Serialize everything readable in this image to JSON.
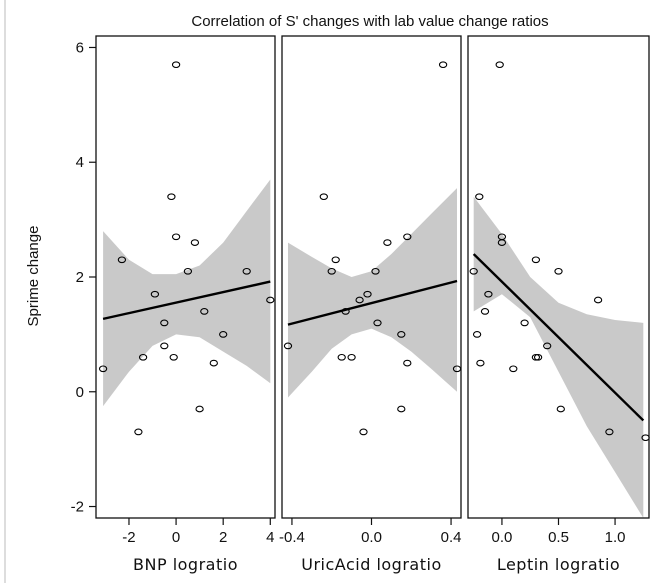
{
  "title": "Correlation of S' changes with lab value change ratios",
  "ylabel": "Sprime change",
  "y_ticks": [
    "6",
    "4",
    "2",
    "0",
    "-2"
  ],
  "chart_data": [
    {
      "type": "scatter",
      "xlabel": "BNP  logratio",
      "ylabel": "Sprime change",
      "xlim": [
        -3.4,
        4.2
      ],
      "ylim": [
        -2.2,
        6.2
      ],
      "x_ticks": [
        -2,
        0,
        2,
        4
      ],
      "x_tick_labels": [
        "-2",
        "0",
        "2",
        "4"
      ],
      "y_ticks": [
        -2,
        0,
        2,
        4,
        6
      ],
      "points": [
        {
          "x": -3.1,
          "y": 0.4
        },
        {
          "x": -2.3,
          "y": 2.3
        },
        {
          "x": -1.6,
          "y": -0.7
        },
        {
          "x": -1.4,
          "y": 0.6
        },
        {
          "x": -0.9,
          "y": 1.7
        },
        {
          "x": -0.5,
          "y": 0.8
        },
        {
          "x": -0.5,
          "y": 1.2
        },
        {
          "x": -0.2,
          "y": 3.4
        },
        {
          "x": 0.0,
          "y": 5.7
        },
        {
          "x": 0.0,
          "y": 2.7
        },
        {
          "x": -0.1,
          "y": 0.6
        },
        {
          "x": 0.5,
          "y": 2.1
        },
        {
          "x": 0.8,
          "y": 2.6
        },
        {
          "x": 1.0,
          "y": -0.3
        },
        {
          "x": 1.2,
          "y": 1.4
        },
        {
          "x": 1.6,
          "y": 0.5
        },
        {
          "x": 2.0,
          "y": 1.0
        },
        {
          "x": 3.0,
          "y": 2.1
        },
        {
          "x": 4.0,
          "y": 1.6
        }
      ],
      "fit_line": [
        {
          "x": -3.1,
          "y": 1.27
        },
        {
          "x": 4.0,
          "y": 1.92
        }
      ],
      "confidence_band": {
        "x": [
          -3.1,
          -2.0,
          -1.0,
          0.0,
          1.0,
          2.0,
          3.0,
          4.0
        ],
        "lower": [
          -0.25,
          0.35,
          0.8,
          1.0,
          0.95,
          0.7,
          0.45,
          0.15
        ],
        "upper": [
          2.8,
          2.3,
          2.05,
          2.05,
          2.2,
          2.6,
          3.15,
          3.7
        ]
      },
      "grid": false
    },
    {
      "type": "scatter",
      "xlabel": "UricAcid  logratio",
      "ylabel": "Sprime change",
      "xlim": [
        -0.45,
        0.45
      ],
      "ylim": [
        -2.2,
        6.2
      ],
      "x_ticks": [
        -0.4,
        0.0,
        0.4
      ],
      "x_tick_labels": [
        "-0.4",
        "0.0",
        "0.4"
      ],
      "y_ticks": [
        -2,
        0,
        2,
        4,
        6
      ],
      "points": [
        {
          "x": -0.42,
          "y": 0.8
        },
        {
          "x": -0.24,
          "y": 3.4
        },
        {
          "x": -0.2,
          "y": 2.1
        },
        {
          "x": -0.18,
          "y": 2.3
        },
        {
          "x": -0.15,
          "y": 0.6
        },
        {
          "x": -0.13,
          "y": 1.4
        },
        {
          "x": -0.1,
          "y": 0.6
        },
        {
          "x": -0.06,
          "y": 1.6
        },
        {
          "x": -0.04,
          "y": -0.7
        },
        {
          "x": -0.02,
          "y": 1.7
        },
        {
          "x": 0.02,
          "y": 2.1
        },
        {
          "x": 0.03,
          "y": 1.2
        },
        {
          "x": 0.08,
          "y": 2.6
        },
        {
          "x": 0.15,
          "y": 1.0
        },
        {
          "x": 0.15,
          "y": -0.3
        },
        {
          "x": 0.18,
          "y": 0.5
        },
        {
          "x": 0.18,
          "y": 2.7
        },
        {
          "x": 0.36,
          "y": 5.7
        },
        {
          "x": 0.43,
          "y": 0.4
        }
      ],
      "fit_line": [
        {
          "x": -0.42,
          "y": 1.17
        },
        {
          "x": 0.43,
          "y": 1.93
        }
      ],
      "confidence_band": {
        "x": [
          -0.42,
          -0.3,
          -0.2,
          -0.1,
          0.0,
          0.1,
          0.2,
          0.3,
          0.43
        ],
        "lower": [
          -0.1,
          0.35,
          0.75,
          1.0,
          1.1,
          0.95,
          0.7,
          0.4,
          0.0
        ],
        "upper": [
          2.6,
          2.35,
          2.15,
          2.0,
          2.1,
          2.4,
          2.75,
          3.1,
          3.55
        ]
      },
      "grid": false
    },
    {
      "type": "scatter",
      "xlabel": "Leptin  logratio",
      "ylabel": "Sprime change",
      "xlim": [
        -0.3,
        1.3
      ],
      "ylim": [
        -2.2,
        6.2
      ],
      "x_ticks": [
        0.0,
        0.5,
        1.0
      ],
      "x_tick_labels": [
        "0.0",
        "0.5",
        "1.0"
      ],
      "y_ticks": [
        -2,
        0,
        2,
        4,
        6
      ],
      "points": [
        {
          "x": -0.25,
          "y": 2.1
        },
        {
          "x": -0.22,
          "y": 1.0
        },
        {
          "x": -0.2,
          "y": 3.4
        },
        {
          "x": -0.19,
          "y": 0.5
        },
        {
          "x": -0.15,
          "y": 1.4
        },
        {
          "x": -0.12,
          "y": 1.7
        },
        {
          "x": -0.02,
          "y": 5.7
        },
        {
          "x": 0.0,
          "y": 2.7
        },
        {
          "x": 0.0,
          "y": 2.6
        },
        {
          "x": 0.1,
          "y": 0.4
        },
        {
          "x": 0.2,
          "y": 1.2
        },
        {
          "x": 0.3,
          "y": 2.3
        },
        {
          "x": 0.32,
          "y": 0.6
        },
        {
          "x": 0.3,
          "y": 0.6
        },
        {
          "x": 0.4,
          "y": 0.8
        },
        {
          "x": 0.5,
          "y": 2.1
        },
        {
          "x": 0.52,
          "y": -0.3
        },
        {
          "x": 0.85,
          "y": 1.6
        },
        {
          "x": 0.95,
          "y": -0.7
        },
        {
          "x": 1.27,
          "y": -0.8
        }
      ],
      "fit_line": [
        {
          "x": -0.25,
          "y": 2.4
        },
        {
          "x": 1.25,
          "y": -0.5
        }
      ],
      "confidence_band": {
        "x": [
          -0.25,
          0.0,
          0.25,
          0.5,
          0.75,
          1.0,
          1.25
        ],
        "lower": [
          1.4,
          1.7,
          1.3,
          0.35,
          -0.6,
          -1.4,
          -2.2
        ],
        "upper": [
          3.4,
          2.75,
          2.0,
          1.55,
          1.35,
          1.25,
          1.2
        ]
      },
      "grid": false
    }
  ]
}
